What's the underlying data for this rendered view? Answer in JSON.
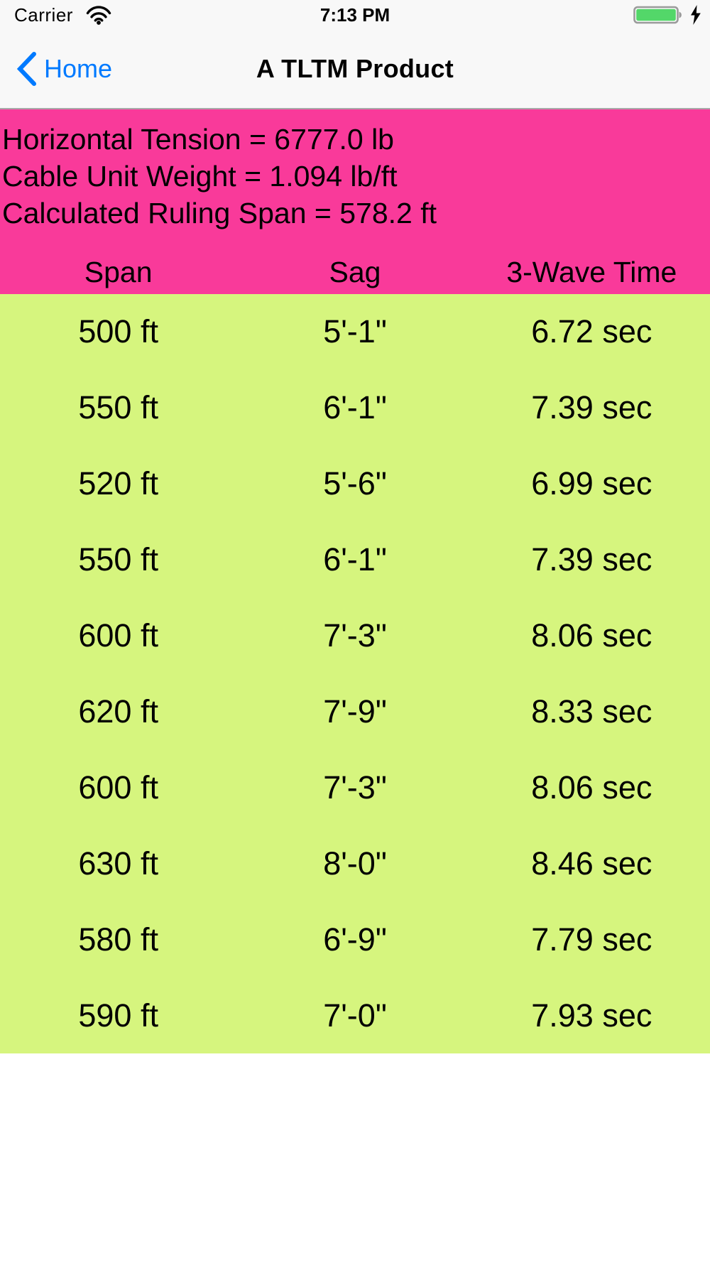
{
  "status_bar": {
    "carrier": "Carrier",
    "time": "7:13 PM"
  },
  "nav": {
    "back_label": "Home",
    "title": "A TLTM Product"
  },
  "summary": {
    "lines": [
      "Horizontal Tension = 6777.0 lb",
      "Cable Unit Weight = 1.094 lb/ft",
      "Calculated Ruling Span = 578.2 ft"
    ]
  },
  "table": {
    "headers": [
      "Span",
      "Sag",
      "3-Wave Time"
    ],
    "rows": [
      [
        "500 ft",
        "5'-1\"",
        "6.72 sec"
      ],
      [
        "550 ft",
        "6'-1\"",
        "7.39 sec"
      ],
      [
        "520 ft",
        "5'-6\"",
        "6.99 sec"
      ],
      [
        "550 ft",
        "6'-1\"",
        "7.39 sec"
      ],
      [
        "600 ft",
        "7'-3\"",
        "8.06 sec"
      ],
      [
        "620 ft",
        "7'-9\"",
        "8.33 sec"
      ],
      [
        "600 ft",
        "7'-3\"",
        "8.06 sec"
      ],
      [
        "630 ft",
        "8'-0\"",
        "8.46 sec"
      ],
      [
        "580 ft",
        "6'-9\"",
        "7.79 sec"
      ],
      [
        "590 ft",
        "7'-0\"",
        "7.93 sec"
      ]
    ]
  },
  "icons": {
    "wifi": "wifi-icon",
    "battery": "battery-full-icon",
    "charging": "charging-bolt-icon",
    "back": "chevron-left-icon"
  },
  "colors": {
    "panel_pink": "#f93a9a",
    "table_green": "#d6f57e",
    "accent_blue": "#007aff",
    "battery_green": "#53d769"
  }
}
